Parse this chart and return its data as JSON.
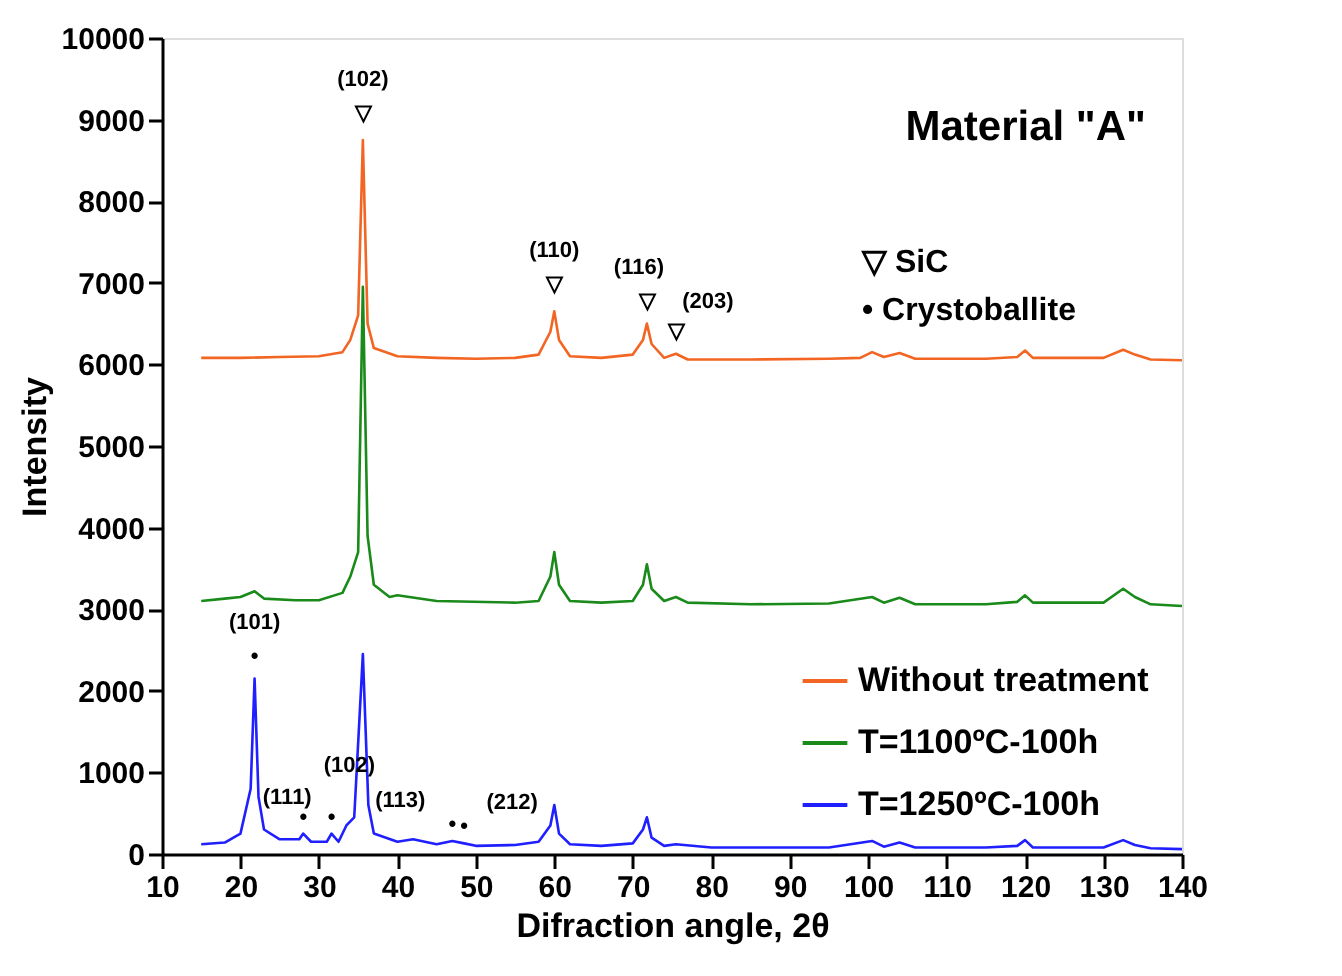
{
  "chart_data": {
    "type": "line",
    "title": "Material \"A\"",
    "xlabel": "Difraction angle, 2θ",
    "ylabel": "Intensity",
    "xlim": [
      10,
      140
    ],
    "xticks": [
      10,
      20,
      30,
      40,
      50,
      60,
      70,
      80,
      90,
      100,
      110,
      120,
      130,
      140
    ],
    "ylim": [
      0,
      10000
    ],
    "yticks": [
      0,
      1000,
      2000,
      3000,
      4000,
      5000,
      6000,
      7000,
      8000,
      9000,
      10000
    ],
    "grid": false,
    "legend": "bottom right",
    "marker": "none",
    "line_style": "solid",
    "series": [
      {
        "name": "Without treatment",
        "color": "#f26522",
        "x": [
          15,
          20,
          25,
          30,
          33,
          34,
          35,
          35.6,
          36.2,
          37,
          40,
          45,
          50,
          55,
          58,
          59.5,
          60,
          60.6,
          62,
          66,
          70,
          71.3,
          71.8,
          72.4,
          74,
          75.5,
          77,
          85,
          95,
          99,
          100.5,
          102,
          104,
          106,
          115,
          119,
          120,
          121,
          130,
          132.5,
          134,
          136,
          140
        ],
        "values": [
          6080,
          6080,
          6090,
          6100,
          6150,
          6300,
          6600,
          8750,
          6500,
          6200,
          6100,
          6080,
          6070,
          6080,
          6120,
          6400,
          6650,
          6300,
          6100,
          6080,
          6120,
          6300,
          6500,
          6250,
          6080,
          6130,
          6060,
          6060,
          6070,
          6080,
          6150,
          6090,
          6140,
          6070,
          6070,
          6090,
          6170,
          6080,
          6080,
          6180,
          6120,
          6060,
          6050
        ]
      },
      {
        "name": "T=1100ºC-100h",
        "color": "#1a8a1a",
        "x": [
          15,
          18,
          20,
          21.8,
          23,
          27,
          30,
          33,
          34,
          35,
          35.6,
          36.2,
          37,
          39,
          40,
          45,
          55,
          58,
          59.5,
          60,
          60.6,
          62,
          66,
          70,
          71.3,
          71.8,
          72.4,
          74,
          75.5,
          77,
          85,
          95,
          100.5,
          102,
          104,
          106,
          115,
          119,
          120,
          121,
          130,
          132.5,
          134,
          136,
          140
        ],
        "values": [
          3100,
          3130,
          3150,
          3220,
          3130,
          3110,
          3110,
          3200,
          3400,
          3700,
          6950,
          3900,
          3300,
          3150,
          3170,
          3100,
          3080,
          3100,
          3400,
          3700,
          3300,
          3100,
          3080,
          3100,
          3300,
          3550,
          3250,
          3100,
          3150,
          3080,
          3060,
          3070,
          3150,
          3080,
          3140,
          3060,
          3060,
          3090,
          3170,
          3080,
          3080,
          3250,
          3150,
          3060,
          3040
        ]
      },
      {
        "name": "T=1250ºC-100h",
        "color": "#1f1fff",
        "x": [
          15,
          18,
          20,
          21.3,
          21.8,
          22.3,
          23,
          25,
          27.5,
          28,
          29,
          31,
          31.6,
          32.5,
          33.5,
          34.5,
          35.6,
          36.3,
          37,
          40,
          42,
          45,
          47,
          48.5,
          50,
          55,
          58,
          59.5,
          60,
          60.6,
          62,
          66,
          70,
          71.3,
          71.8,
          72.4,
          74,
          75.5,
          80,
          95,
          100.5,
          102,
          104,
          106,
          115,
          119,
          120,
          121,
          130,
          132.5,
          134,
          136,
          140
        ],
        "values": [
          120,
          140,
          250,
          800,
          2150,
          700,
          300,
          180,
          180,
          250,
          150,
          150,
          250,
          150,
          350,
          450,
          2450,
          600,
          250,
          150,
          180,
          120,
          160,
          130,
          100,
          110,
          150,
          350,
          600,
          250,
          120,
          100,
          130,
          300,
          450,
          200,
          100,
          120,
          80,
          80,
          160,
          90,
          140,
          80,
          80,
          100,
          170,
          80,
          80,
          170,
          110,
          70,
          60
        ]
      }
    ],
    "annotations": [
      {
        "text": "(102)",
        "x": 35.6,
        "y": 8750
      },
      {
        "text": "▽",
        "x": 35.6,
        "y": 8750
      },
      {
        "text": "(110)",
        "x": 60,
        "y": 6650
      },
      {
        "text": "▽",
        "x": 60,
        "y": 6650
      },
      {
        "text": "(116)",
        "x": 71.8,
        "y": 6500
      },
      {
        "text": "▽",
        "x": 71.8,
        "y": 6500
      },
      {
        "text": "(203)",
        "x": 75.5,
        "y": 6130
      },
      {
        "text": "▽",
        "x": 75.5,
        "y": 6130
      },
      {
        "text": "(101)",
        "x": 21.8,
        "y": 2150
      },
      {
        "text": "•",
        "x": 21.8,
        "y": 2150
      },
      {
        "text": "(111)",
        "x": 28,
        "y": 250
      },
      {
        "text": "•",
        "x": 28,
        "y": 250
      },
      {
        "text": "(102)",
        "x": 31.6,
        "y": 250
      },
      {
        "text": "•",
        "x": 31.6,
        "y": 250
      },
      {
        "text": "(113)",
        "x": 47,
        "y": 160
      },
      {
        "text": "•",
        "x": 47,
        "y": 160
      },
      {
        "text": "•",
        "x": 48.5,
        "y": 130
      },
      {
        "text": "(212)",
        "x": 48.5,
        "y": 130
      },
      "▽ SiC",
      "• Crystoballite"
    ]
  }
}
